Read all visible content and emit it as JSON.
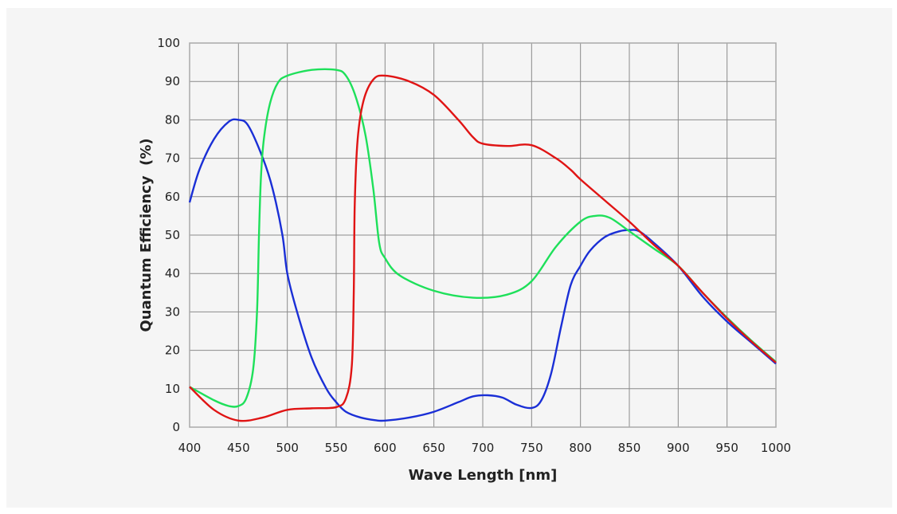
{
  "chart_data": {
    "type": "line",
    "title": "",
    "xlabel": "Wave Length [nm]",
    "ylabel": "Quantum Efficiency  (%)",
    "xlim": [
      400,
      1000
    ],
    "ylim": [
      0,
      100
    ],
    "xticks": [
      400,
      450,
      500,
      550,
      600,
      650,
      700,
      750,
      800,
      850,
      900,
      950,
      1000
    ],
    "yticks": [
      0,
      10,
      20,
      30,
      40,
      50,
      60,
      70,
      80,
      90,
      100
    ],
    "grid": true,
    "legend": "none",
    "series": [
      {
        "color": "#1a2fd6",
        "points": [
          [
            400,
            58.5
          ],
          [
            410,
            67
          ],
          [
            425,
            75
          ],
          [
            440,
            79.5
          ],
          [
            450,
            80
          ],
          [
            460,
            78.5
          ],
          [
            475,
            70
          ],
          [
            485,
            62
          ],
          [
            495,
            50
          ],
          [
            500,
            40
          ],
          [
            510,
            30
          ],
          [
            525,
            18
          ],
          [
            540,
            10
          ],
          [
            550,
            6.5
          ],
          [
            560,
            4
          ],
          [
            575,
            2.5
          ],
          [
            590,
            1.8
          ],
          [
            600,
            1.7
          ],
          [
            625,
            2.5
          ],
          [
            650,
            4
          ],
          [
            675,
            6.5
          ],
          [
            690,
            8
          ],
          [
            705,
            8.3
          ],
          [
            720,
            7.7
          ],
          [
            735,
            5.8
          ],
          [
            750,
            5
          ],
          [
            760,
            7
          ],
          [
            770,
            14
          ],
          [
            780,
            26
          ],
          [
            790,
            37
          ],
          [
            800,
            42
          ],
          [
            810,
            46
          ],
          [
            825,
            49.5
          ],
          [
            840,
            51
          ],
          [
            850,
            51.3
          ],
          [
            860,
            51
          ],
          [
            875,
            48
          ],
          [
            900,
            42
          ],
          [
            925,
            34
          ],
          [
            950,
            27.5
          ],
          [
            975,
            22
          ],
          [
            1000,
            16.5
          ]
        ]
      },
      {
        "color": "#1ee05a",
        "points": [
          [
            400,
            10.5
          ],
          [
            425,
            7
          ],
          [
            440,
            5.5
          ],
          [
            450,
            5.5
          ],
          [
            458,
            7.5
          ],
          [
            465,
            15
          ],
          [
            469,
            30
          ],
          [
            471,
            50
          ],
          [
            473,
            65
          ],
          [
            476,
            75
          ],
          [
            482,
            84
          ],
          [
            490,
            89.5
          ],
          [
            500,
            91.5
          ],
          [
            525,
            93
          ],
          [
            550,
            93
          ],
          [
            560,
            91.5
          ],
          [
            570,
            86
          ],
          [
            580,
            76
          ],
          [
            588,
            62
          ],
          [
            594,
            48
          ],
          [
            600,
            44
          ],
          [
            615,
            39.5
          ],
          [
            650,
            35.5
          ],
          [
            690,
            33.7
          ],
          [
            725,
            34.5
          ],
          [
            750,
            38
          ],
          [
            775,
            47
          ],
          [
            800,
            53.5
          ],
          [
            815,
            55
          ],
          [
            830,
            54.5
          ],
          [
            850,
            51
          ],
          [
            875,
            46.5
          ],
          [
            900,
            42
          ],
          [
            925,
            35
          ],
          [
            950,
            28.5
          ],
          [
            975,
            22.5
          ],
          [
            1000,
            17
          ]
        ]
      },
      {
        "color": "#e01414",
        "points": [
          [
            400,
            10.5
          ],
          [
            425,
            4.5
          ],
          [
            450,
            1.7
          ],
          [
            475,
            2.5
          ],
          [
            500,
            4.5
          ],
          [
            525,
            4.9
          ],
          [
            550,
            5.2
          ],
          [
            560,
            7.5
          ],
          [
            566,
            16
          ],
          [
            568,
            35
          ],
          [
            569,
            58
          ],
          [
            572,
            75
          ],
          [
            578,
            85
          ],
          [
            588,
            90.5
          ],
          [
            600,
            91.5
          ],
          [
            625,
            90
          ],
          [
            650,
            86.5
          ],
          [
            675,
            80
          ],
          [
            690,
            75.5
          ],
          [
            700,
            73.8
          ],
          [
            725,
            73.2
          ],
          [
            750,
            73.4
          ],
          [
            775,
            70
          ],
          [
            790,
            67
          ],
          [
            800,
            64.5
          ],
          [
            825,
            59
          ],
          [
            850,
            53.5
          ],
          [
            875,
            47.5
          ],
          [
            900,
            42
          ],
          [
            925,
            35
          ],
          [
            950,
            28.3
          ],
          [
            975,
            22.3
          ],
          [
            1000,
            16.8
          ]
        ]
      }
    ]
  }
}
